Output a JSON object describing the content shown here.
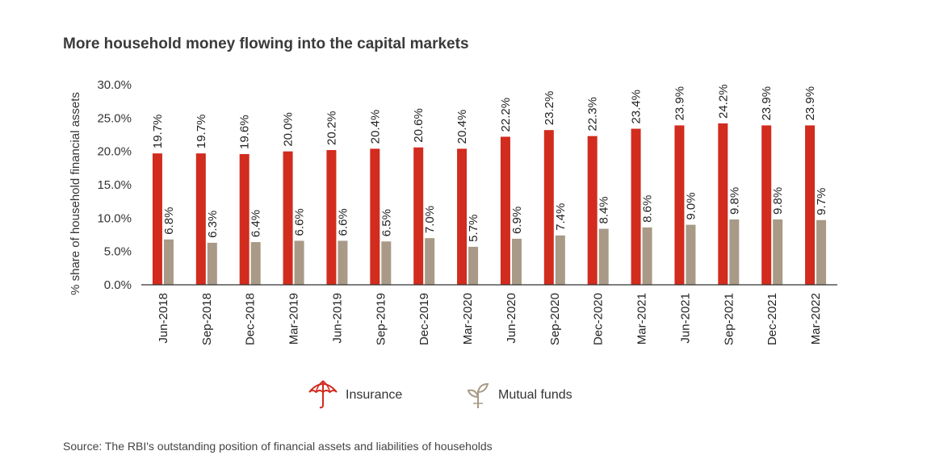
{
  "title": "More household money flowing into the capital markets",
  "source": "Source: The RBI's outstanding position of financial assets and liabilities of households",
  "colors": {
    "insurance": "#d12c1e",
    "mutual_funds": "#a89a87",
    "axis": "#333333"
  },
  "legend": {
    "insurance": {
      "label": "Insurance",
      "icon": "umbrella-icon"
    },
    "mutual_funds": {
      "label": "Mutual funds",
      "icon": "sprout-icon"
    }
  },
  "chart_data": {
    "type": "bar",
    "title": "More household money flowing into the capital markets",
    "ylabel": "% share of household financial assets",
    "xlabel": "",
    "ylim": [
      0,
      30
    ],
    "yticks": [
      "0.0%",
      "5.0%",
      "10.0%",
      "15.0%",
      "20.0%",
      "25.0%",
      "30.0%"
    ],
    "grid": false,
    "legend_position": "bottom",
    "categories": [
      "Jun-2018",
      "Sep-2018",
      "Dec-2018",
      "Mar-2019",
      "Jun-2019",
      "Sep-2019",
      "Dec-2019",
      "Mar-2020",
      "Jun-2020",
      "Sep-2020",
      "Dec-2020",
      "Mar-2021",
      "Jun-2021",
      "Sep-2021",
      "Dec-2021",
      "Mar-2022"
    ],
    "series": [
      {
        "name": "Insurance",
        "values": [
          19.7,
          19.7,
          19.6,
          20.0,
          20.2,
          20.4,
          20.6,
          20.4,
          22.2,
          23.2,
          22.3,
          23.4,
          23.9,
          24.2,
          23.9,
          23.9
        ],
        "labels": [
          "19.7%",
          "19.7%",
          "19.6%",
          "20.0%",
          "20.2%",
          "20.4%",
          "20.6%",
          "20.4%",
          "22.2%",
          "23.2%",
          "22.3%",
          "23.4%",
          "23.9%",
          "24.2%",
          "23.9%",
          "23.9%"
        ]
      },
      {
        "name": "Mutual funds",
        "values": [
          6.8,
          6.3,
          6.4,
          6.6,
          6.6,
          6.5,
          7.0,
          5.7,
          6.9,
          7.4,
          8.4,
          8.6,
          9.0,
          9.8,
          9.8,
          9.7
        ],
        "labels": [
          "6.8%",
          "6.3%",
          "6.4%",
          "6.6%",
          "6.6%",
          "6.5%",
          "7.0%",
          "5.7%",
          "6.9%",
          "7.4%",
          "8.4%",
          "8.6%",
          "9.0%",
          "9.8%",
          "9.8%",
          "9.7%"
        ]
      }
    ]
  }
}
